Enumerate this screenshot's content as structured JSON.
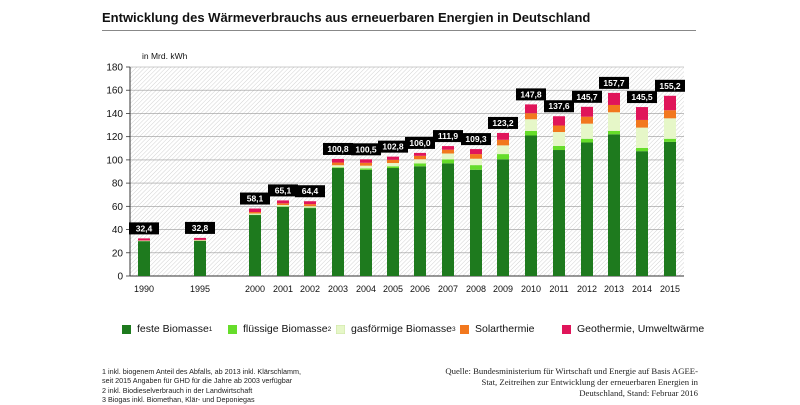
{
  "title": "Entwicklung des Wärmeverbrauchs aus erneuerbaren Energien in Deutschland",
  "chart_data": {
    "type": "bar",
    "stacked": true,
    "ylabel": "in Mrd. kWh",
    "ylim": [
      0,
      180
    ],
    "yticks": [
      0,
      20,
      40,
      60,
      80,
      100,
      120,
      140,
      160,
      180
    ],
    "categories": [
      "1990",
      "1995",
      "2000",
      "2001",
      "2002",
      "2003",
      "2004",
      "2005",
      "2006",
      "2007",
      "2008",
      "2009",
      "2010",
      "2011",
      "2012",
      "2013",
      "2014",
      "2015"
    ],
    "totals": [
      32.4,
      32.8,
      58.1,
      65.1,
      64.4,
      100.8,
      100.5,
      102.8,
      106.0,
      111.9,
      109.3,
      123.2,
      147.8,
      137.6,
      145.7,
      157.7,
      145.5,
      155.2
    ],
    "total_labels": [
      "32,4",
      "32,8",
      "58,1",
      "65,1",
      "64,4",
      "100,8",
      "100,5",
      "102,8",
      "106,0",
      "111,9",
      "109,3",
      "123,2",
      "147,8",
      "137,6",
      "145,7",
      "157,7",
      "145,5",
      "155,2"
    ],
    "series": [
      {
        "name": "feste Biomasse",
        "sup": "1",
        "color": "#1e7a1e",
        "values": [
          30.0,
          30.3,
          52.5,
          59.5,
          58.5,
          93.0,
          91.5,
          93.0,
          94.5,
          97.0,
          91.5,
          100.5,
          121.0,
          108.5,
          115.0,
          122.0,
          107.5,
          115.5
        ]
      },
      {
        "name": "flüssige Biomasse",
        "sup": "2",
        "color": "#66dd2a",
        "values": [
          0.1,
          0.1,
          0.3,
          0.4,
          0.4,
          0.6,
          1.2,
          1.5,
          2.5,
          3.5,
          4.0,
          4.5,
          4.0,
          3.5,
          3.2,
          3.0,
          2.8,
          2.7
        ]
      },
      {
        "name": "gasförmige Biomasse",
        "sup": "3",
        "color": "#e6f7c8",
        "values": [
          0.4,
          0.4,
          1.0,
          1.2,
          1.2,
          1.8,
          2.3,
          2.8,
          3.5,
          5.0,
          5.5,
          7.5,
          10.0,
          12.0,
          13.0,
          16.0,
          17.5,
          17.6
        ]
      },
      {
        "name": "Solarthermie",
        "sup": "",
        "color": "#f2781e",
        "values": [
          0.1,
          0.3,
          1.3,
          1.5,
          1.8,
          2.3,
          2.5,
          2.8,
          3.0,
          3.3,
          4.0,
          4.8,
          5.2,
          5.6,
          6.0,
          6.3,
          6.6,
          7.0
        ]
      },
      {
        "name": "Geothermie, Umweltwärme",
        "sup": "",
        "color": "#e0155a",
        "values": [
          1.8,
          1.7,
          3.0,
          2.5,
          2.5,
          3.1,
          3.0,
          2.7,
          2.5,
          3.1,
          4.3,
          5.9,
          7.6,
          8.0,
          8.5,
          10.4,
          11.1,
          12.4
        ]
      }
    ]
  },
  "footnotes": [
    "1  inkl. biogenem  Anteil  des Abfalls,  ab  2013 inkl.  Klärschlamm,",
    "seit  2015  Angaben  für GHD für die Jahre ab 2003  verfügbar",
    "2  inkl.  Biodieselverbrauch   in  der Landwirtschaft",
    "3  Biogas inkl.  Biomethan,  Klär-  und  Deponiegas"
  ],
  "source": [
    "Quelle:  Bundesministerium für Wirtschaft und Energie auf Basis AGEE-",
    "Stat, Zeitreihen zur Entwicklung der erneuerbaren Energien in",
    "Deutschland, Stand: Februar 2016"
  ]
}
